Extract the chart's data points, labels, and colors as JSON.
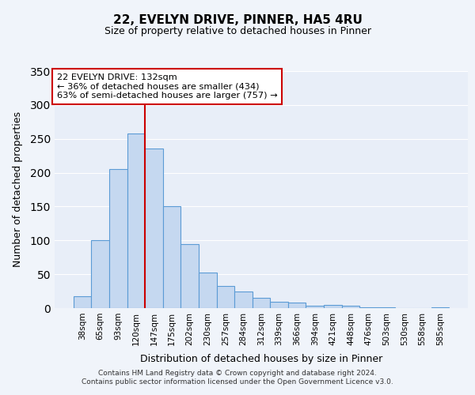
{
  "title": "22, EVELYN DRIVE, PINNER, HA5 4RU",
  "subtitle": "Size of property relative to detached houses in Pinner",
  "xlabel": "Distribution of detached houses by size in Pinner",
  "ylabel": "Number of detached properties",
  "bar_labels": [
    "38sqm",
    "65sqm",
    "93sqm",
    "120sqm",
    "147sqm",
    "175sqm",
    "202sqm",
    "230sqm",
    "257sqm",
    "284sqm",
    "312sqm",
    "339sqm",
    "366sqm",
    "394sqm",
    "421sqm",
    "448sqm",
    "476sqm",
    "503sqm",
    "530sqm",
    "558sqm",
    "585sqm"
  ],
  "bar_values": [
    18,
    100,
    205,
    258,
    236,
    150,
    95,
    52,
    33,
    25,
    15,
    9,
    8,
    4,
    5,
    4,
    1,
    1,
    0,
    0,
    1
  ],
  "bar_color": "#c5d8f0",
  "bar_edge_color": "#5b9bd5",
  "bar_edge_width": 0.8,
  "property_line_bin": 3,
  "property_line_color": "#cc0000",
  "ylim": [
    0,
    350
  ],
  "yticks": [
    0,
    50,
    100,
    150,
    200,
    250,
    300,
    350
  ],
  "annotation_title": "22 EVELYN DRIVE: 132sqm",
  "annotation_line1": "← 36% of detached houses are smaller (434)",
  "annotation_line2": "63% of semi-detached houses are larger (757) →",
  "annotation_box_color": "#ffffff",
  "annotation_box_edge": "#cc0000",
  "background_color": "#f0f4fa",
  "plot_bg_color": "#e8eef8",
  "grid_color": "#ffffff",
  "footer1": "Contains HM Land Registry data © Crown copyright and database right 2024.",
  "footer2": "Contains public sector information licensed under the Open Government Licence v3.0."
}
